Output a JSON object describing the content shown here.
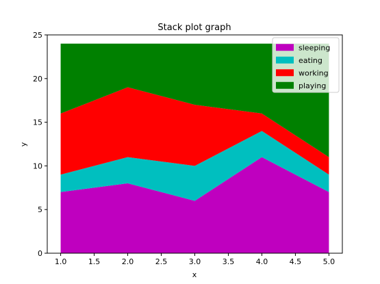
{
  "chart_data": {
    "type": "area",
    "stacked": true,
    "title": "Stack plot graph",
    "xlabel": "x",
    "ylabel": "y",
    "x": [
      1,
      2,
      3,
      4,
      5
    ],
    "xlim": [
      0.8,
      5.2
    ],
    "ylim": [
      0,
      25
    ],
    "xticks": [
      1.0,
      1.5,
      2.0,
      2.5,
      3.0,
      3.5,
      4.0,
      4.5,
      5.0
    ],
    "xtick_labels": [
      "1.0",
      "1.5",
      "2.0",
      "2.5",
      "3.0",
      "3.5",
      "4.0",
      "4.5",
      "5.0"
    ],
    "yticks": [
      0,
      5,
      10,
      15,
      20,
      25
    ],
    "ytick_labels": [
      "0",
      "5",
      "10",
      "15",
      "20",
      "25"
    ],
    "grid": false,
    "legend_position": "top-right",
    "series": [
      {
        "name": "sleeping",
        "values": [
          7,
          8,
          6,
          11,
          7
        ],
        "color": "#bf00bf"
      },
      {
        "name": "eating",
        "values": [
          2,
          3,
          4,
          3,
          2
        ],
        "color": "#00bfbf"
      },
      {
        "name": "working",
        "values": [
          7,
          8,
          7,
          2,
          2
        ],
        "color": "#ff0000"
      },
      {
        "name": "playing",
        "values": [
          8,
          5,
          7,
          8,
          13
        ],
        "color": "#008000"
      }
    ]
  }
}
